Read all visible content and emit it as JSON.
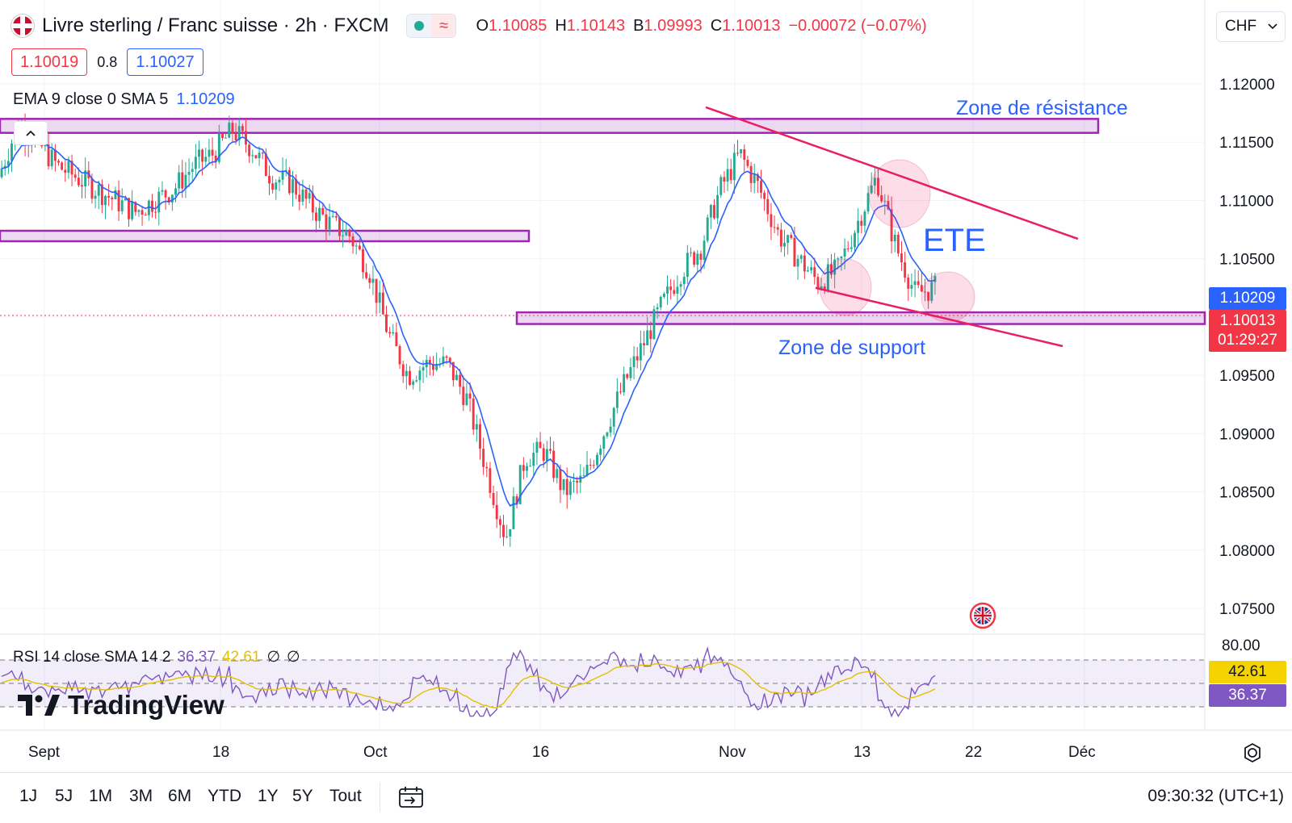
{
  "header": {
    "title": "Livre sterling / Franc suisse · 2h · FXCM",
    "ohlc": [
      {
        "k": "O",
        "v": "1.10085"
      },
      {
        "k": "H",
        "v": "1.10143"
      },
      {
        "k": "B",
        "v": "1.09993"
      },
      {
        "k": "C",
        "v": "1.10013"
      }
    ],
    "change": "−0.00072 (−0.07%)",
    "currency": "CHF"
  },
  "trade": {
    "sell": "1.10019",
    "spread": "0.8",
    "buy": "1.10027"
  },
  "ema_legend": {
    "label": "EMA 9 close 0 SMA 5",
    "value": "1.10209"
  },
  "annotations": {
    "resistance": "Zone de résistance",
    "support": "Zone de support",
    "pattern": "ETE"
  },
  "rsi_legend": {
    "label": "RSI 14 close SMA 14 2",
    "rsi": "36.37",
    "sma": "42.61",
    "na1": "∅",
    "na2": "∅"
  },
  "logo": "TradingView",
  "price_tags": {
    "ema": "1.10209",
    "last": "1.10013",
    "countdown": "01:29:27",
    "rsi_sma": "42.61",
    "rsi": "36.37"
  },
  "rsi_axis_label": "80.00",
  "bottom_bar": {
    "ranges": [
      "1J",
      "5J",
      "1M",
      "3M",
      "6M",
      "YTD",
      "1Y",
      "5Y",
      "Tout"
    ],
    "clock": "09:30:32 (UTC+1)"
  },
  "colors": {
    "up": "#22ab94",
    "down": "#f23645",
    "ema": "#2962ff",
    "zone": "#9c27b0",
    "trend": "#e91e63",
    "rsi": "#7e57c2",
    "rsi_sma": "#e3c000"
  },
  "chart_data": {
    "type": "candlestick",
    "title": "Livre sterling / Franc suisse · 2h · FXCM",
    "yaxis": {
      "ticks": [
        1.12,
        1.115,
        1.11,
        1.105,
        1.1,
        1.095,
        1.09,
        1.085,
        1.08,
        1.075
      ],
      "tick_labels": [
        "1.12000",
        "1.11500",
        "1.11000",
        "1.10500",
        "",
        "1.09500",
        "1.09000",
        "1.08500",
        "1.08000",
        "1.07500"
      ],
      "range": [
        1.0732,
        1.1252
      ]
    },
    "xaxis": {
      "tick_labels": [
        "Sept",
        "18",
        "Oct",
        "16",
        "Nov",
        "13",
        "22",
        "Déc"
      ]
    },
    "price_path": [
      [
        0,
        1.112
      ],
      [
        1,
        1.1165
      ],
      [
        2,
        1.115
      ],
      [
        3,
        1.113
      ],
      [
        4,
        1.112
      ],
      [
        5,
        1.111
      ],
      [
        6,
        1.11
      ],
      [
        7,
        1.109
      ],
      [
        8,
        1.11
      ],
      [
        9,
        1.111
      ],
      [
        10,
        1.113
      ],
      [
        11,
        1.114
      ],
      [
        12,
        1.116
      ],
      [
        13,
        1.1145
      ],
      [
        14,
        1.112
      ],
      [
        15,
        1.1115
      ],
      [
        16,
        1.1095
      ],
      [
        17,
        1.108
      ],
      [
        18,
        1.107
      ],
      [
        19,
        1.104
      ],
      [
        20,
        1.0985
      ],
      [
        21,
        1.095
      ],
      [
        22,
        1.096
      ],
      [
        23,
        1.096
      ],
      [
        24,
        1.093
      ],
      [
        25,
        1.087
      ],
      [
        26,
        1.081
      ],
      [
        27,
        1.088
      ],
      [
        28,
        1.0885
      ],
      [
        29,
        1.085
      ],
      [
        30,
        1.086
      ],
      [
        31,
        1.09
      ],
      [
        32,
        1.094
      ],
      [
        33,
        1.0975
      ],
      [
        34,
        1.101
      ],
      [
        35,
        1.104
      ],
      [
        36,
        1.106
      ],
      [
        37,
        1.111
      ],
      [
        38,
        1.114
      ],
      [
        39,
        1.111
      ],
      [
        40,
        1.107
      ],
      [
        41,
        1.105
      ],
      [
        42,
        1.103
      ],
      [
        43,
        1.104
      ],
      [
        44,
        1.108
      ],
      [
        45,
        1.112
      ],
      [
        46,
        1.106
      ],
      [
        47,
        1.102
      ],
      [
        48,
        1.1025
      ]
    ],
    "zones": [
      {
        "name": "Zone de résistance",
        "low": 1.1158,
        "high": 1.117
      },
      {
        "name": "middle",
        "low": 1.1065,
        "high": 1.1074
      },
      {
        "name": "Zone de support",
        "low": 1.0994,
        "high": 1.1004
      }
    ],
    "trendlines": [
      {
        "from": [
          1.118
        ],
        "to": [
          1.1067
        ]
      },
      {
        "from": [
          1.1025
        ],
        "to": [
          1.0975
        ]
      }
    ],
    "last_price": 1.10013,
    "ema_value": 1.10209,
    "rsi": {
      "value": 36.37,
      "sma": 42.61,
      "upper": 70,
      "mid": 50,
      "lower": 30,
      "axis_label": 80.0
    }
  }
}
